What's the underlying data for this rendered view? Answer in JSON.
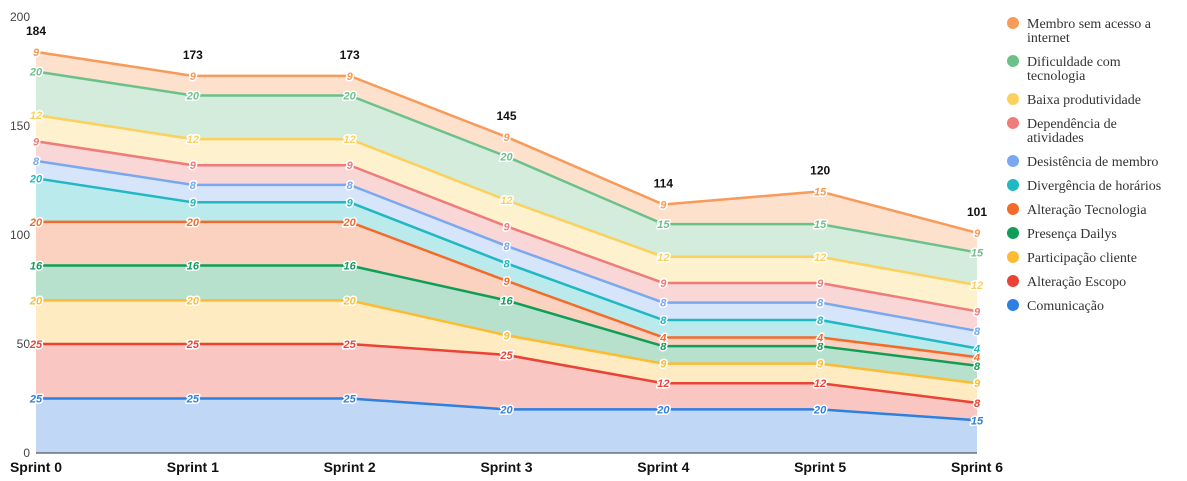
{
  "chart_data": {
    "type": "area",
    "stacked": true,
    "categories": [
      "Sprint 0",
      "Sprint 1",
      "Sprint 2",
      "Sprint 3",
      "Sprint 4",
      "Sprint 5",
      "Sprint 6"
    ],
    "totals": [
      184,
      173,
      173,
      145,
      114,
      120,
      101
    ],
    "ylim": [
      0,
      200
    ],
    "yticks": [
      0,
      50,
      100,
      150,
      200
    ],
    "grid": false,
    "legend_position": "right",
    "series": [
      {
        "name": "Comunicação",
        "color": "#2f7fe0",
        "values": [
          25,
          25,
          25,
          20,
          20,
          20,
          15
        ]
      },
      {
        "name": "Alteração Escopo",
        "color": "#ea4335",
        "values": [
          25,
          25,
          25,
          25,
          12,
          12,
          8
        ]
      },
      {
        "name": "Participação cliente",
        "color": "#fbbc34",
        "values": [
          20,
          20,
          20,
          9,
          9,
          9,
          9
        ]
      },
      {
        "name": "Presença Dailys",
        "color": "#0f9d58",
        "values": [
          16,
          16,
          16,
          16,
          8,
          8,
          8
        ]
      },
      {
        "name": "Alteração Tecnologia",
        "color": "#f26b2a",
        "values": [
          20,
          20,
          20,
          9,
          4,
          4,
          4
        ]
      },
      {
        "name": "Divergência de horários",
        "color": "#1fb8c3",
        "values": [
          20,
          9,
          9,
          8,
          8,
          8,
          4
        ]
      },
      {
        "name": "Desistência de membro",
        "color": "#7aa8f0",
        "values": [
          8,
          8,
          8,
          8,
          8,
          8,
          8
        ]
      },
      {
        "name": "Dependência de atividades",
        "color": "#f07b7b",
        "values": [
          9,
          9,
          9,
          9,
          9,
          9,
          9
        ]
      },
      {
        "name": "Baixa produtividade",
        "color": "#fcd05c",
        "values": [
          12,
          12,
          12,
          12,
          12,
          12,
          12
        ]
      },
      {
        "name": "Dificuldade com tecnologia",
        "color": "#6cc18b",
        "values": [
          20,
          20,
          20,
          20,
          15,
          15,
          15
        ]
      },
      {
        "name": "Membro sem acesso a internet",
        "color": "#f79a5a",
        "values": [
          9,
          9,
          9,
          9,
          9,
          15,
          9
        ]
      }
    ]
  }
}
